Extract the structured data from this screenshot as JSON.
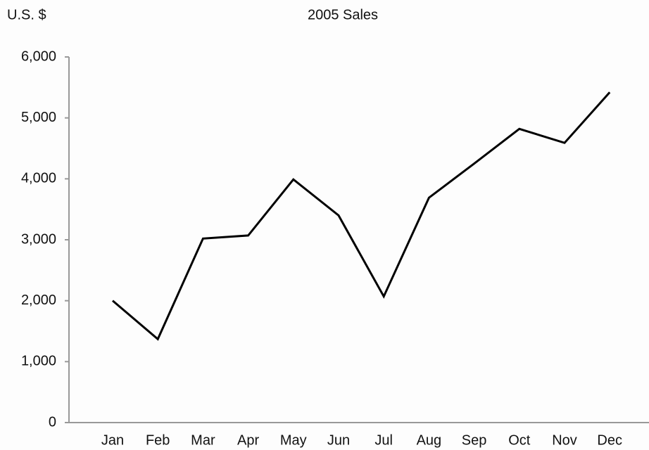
{
  "chart_data": {
    "type": "line",
    "title": "2005 Sales",
    "y_label": "U.S. $",
    "categories": [
      "Jan",
      "Feb",
      "Mar",
      "Apr",
      "May",
      "Jun",
      "Jul",
      "Aug",
      "Sep",
      "Oct",
      "Nov",
      "Dec"
    ],
    "series": [
      {
        "name": "Sales",
        "color": "#000000",
        "values": [
          2000,
          1370,
          3020,
          3070,
          3990,
          3400,
          2070,
          3690,
          4250,
          4820,
          4590,
          5420
        ]
      }
    ],
    "ylim": [
      0,
      6000
    ],
    "yticks": [
      0,
      {
        "value": 1000,
        "label": "1,000"
      },
      {
        "value": 2000,
        "label": "2,000"
      },
      {
        "value": 3000,
        "label": "3,000"
      },
      {
        "value": 4000,
        "label": "4,000"
      },
      {
        "value": 5000,
        "label": "5,000"
      },
      {
        "value": 6000,
        "label": "6,000"
      }
    ],
    "grid": false
  }
}
